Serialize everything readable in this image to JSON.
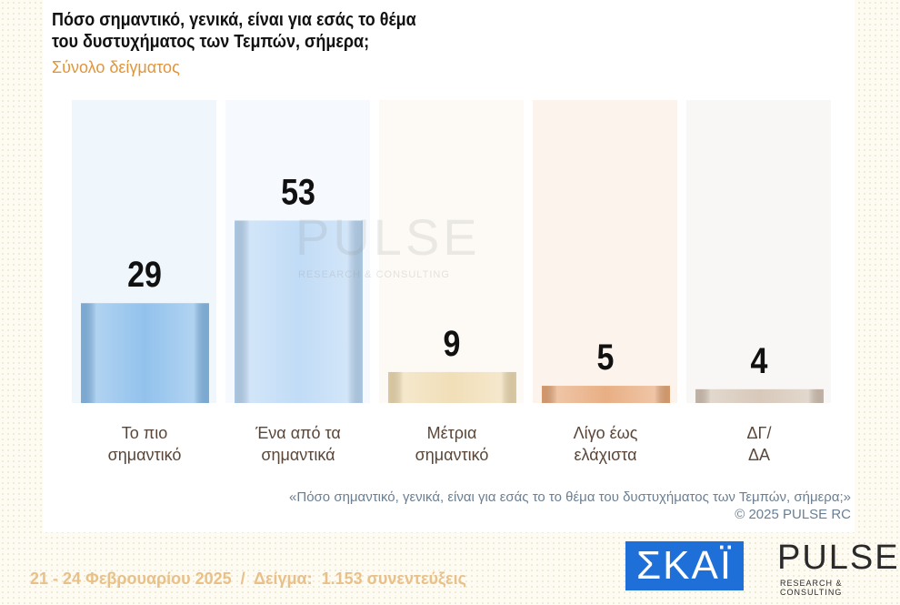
{
  "chart_data": {
    "type": "bar",
    "title": "Πόσο σημαντικό, γενικά, είναι για εσάς το θέμα του δυστυχήματος των Τεμπών, σήμερα;",
    "subtitle": "Σύνολο δείγματος",
    "categories": [
      "Το πιο\nσημαντικό",
      "Ένα από τα\nσημαντικά",
      "Μέτρια\nσημαντικό",
      "Λίγο έως\nελάχιστα",
      "ΔΓ/\nΔΑ"
    ],
    "values": [
      29,
      53,
      9,
      5,
      4
    ],
    "colors": [
      "#86bbea",
      "#bad8f5",
      "#efdbb0",
      "#e6a676",
      "#d3c3b3"
    ],
    "ylim": [
      0,
      88
    ],
    "note": "«Πόσο σημαντικό, γενικά, είναι για εσάς το το θέμα του δυστυχήματος των Τεμπών, σήμερα;»",
    "copyright": "©  2025  PULSE RC"
  },
  "footer": {
    "date_sample": "21 - 24 Φεβρουαρίου 2025  /  Δείγμα:  1.153 συνεντεύξεις",
    "logo_skai": "ΣΚΑΪ",
    "logo_pulse": "PULSE",
    "logo_pulse_tagline": "RESEARCH & CONSULTING"
  }
}
